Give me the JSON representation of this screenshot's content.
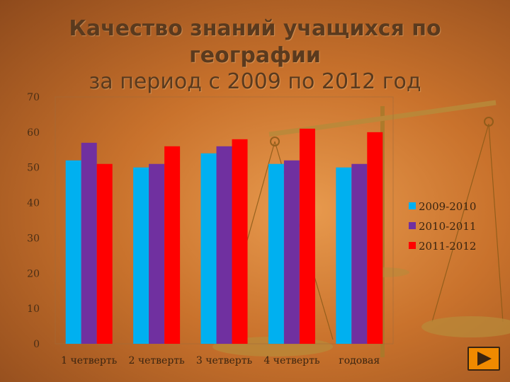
{
  "slide": {
    "title_line1": "Качество знаний учащихся по географии",
    "title_line2": "за период с 2009 по 2012 год"
  },
  "chart_data": {
    "type": "bar",
    "title": "",
    "xlabel": "",
    "ylabel": "",
    "categories": [
      "1 четверть",
      "2 четверть",
      "3 четверть",
      "4 четверть",
      "годовая"
    ],
    "series": [
      {
        "name": "2009-2010",
        "values": [
          52,
          50,
          54,
          51,
          50
        ],
        "color": "#00b0f0"
      },
      {
        "name": "2010-2011",
        "values": [
          57,
          51,
          56,
          52,
          51
        ],
        "color": "#7030a0"
      },
      {
        "name": "2011-2012",
        "values": [
          51,
          56,
          58,
          61,
          60
        ],
        "color": "#ff0000"
      }
    ],
    "ylim": [
      0,
      70
    ],
    "yticks": [
      "0",
      "10",
      "20",
      "30",
      "40",
      "50",
      "60",
      "70"
    ],
    "grid": false,
    "legend_position": "right"
  },
  "nav": {
    "next_icon": "play-next-icon",
    "button_color": "#f08a00"
  }
}
